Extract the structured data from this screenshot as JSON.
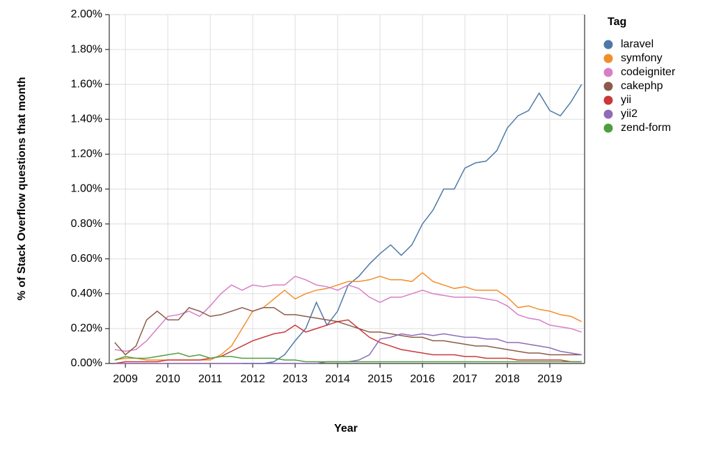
{
  "chart_data": {
    "type": "line",
    "x_label": "Year",
    "y_label": "% of Stack Overflow questions that month",
    "legend_title": "Tag",
    "legend": "right",
    "grid": true,
    "xlim": [
      2008.62,
      2019.82
    ],
    "xticks": [
      2009,
      2010,
      2011,
      2012,
      2013,
      2014,
      2015,
      2016,
      2017,
      2018,
      2019
    ],
    "ylim": [
      0,
      2
    ],
    "yticks": [
      {
        "value": 0,
        "label": "0.00%"
      },
      {
        "value": 0.2,
        "label": "0.20%"
      },
      {
        "value": 0.4,
        "label": "0.40%"
      },
      {
        "value": 0.6,
        "label": "0.60%"
      },
      {
        "value": 0.8,
        "label": "0.80%"
      },
      {
        "value": 1.0,
        "label": "1.00%"
      },
      {
        "value": 1.2,
        "label": "1.20%"
      },
      {
        "value": 1.4,
        "label": "1.40%"
      },
      {
        "value": 1.6,
        "label": "1.60%"
      },
      {
        "value": 1.8,
        "label": "1.80%"
      },
      {
        "value": 2.0,
        "label": "2.00%"
      }
    ],
    "x": [
      2008.75,
      2009,
      2009.25,
      2009.5,
      2009.75,
      2010,
      2010.25,
      2010.5,
      2010.75,
      2011,
      2011.25,
      2011.5,
      2011.75,
      2012,
      2012.25,
      2012.5,
      2012.75,
      2013,
      2013.25,
      2013.5,
      2013.75,
      2014,
      2014.25,
      2014.5,
      2014.75,
      2015,
      2015.25,
      2015.5,
      2015.75,
      2016,
      2016.25,
      2016.5,
      2016.75,
      2017,
      2017.25,
      2017.5,
      2017.75,
      2018,
      2018.25,
      2018.5,
      2018.75,
      2019,
      2019.25,
      2019.5,
      2019.75
    ],
    "series": [
      {
        "name": "laravel",
        "color": "#4e79a7",
        "values": [
          null,
          null,
          null,
          null,
          null,
          null,
          null,
          null,
          null,
          null,
          null,
          null,
          0,
          0,
          0,
          0.01,
          0.05,
          0.13,
          0.2,
          0.35,
          0.22,
          0.3,
          0.45,
          0.5,
          0.57,
          0.63,
          0.68,
          0.62,
          0.68,
          0.8,
          0.88,
          1.0,
          1.0,
          1.12,
          1.15,
          1.16,
          1.22,
          1.35,
          1.42,
          1.45,
          1.55,
          1.45,
          1.42,
          1.5,
          1.6
        ]
      },
      {
        "name": "symfony",
        "color": "#f28e2b",
        "values": [
          0.02,
          0.03,
          0.03,
          0.02,
          0.02,
          0.02,
          0.02,
          0.02,
          0.02,
          0.02,
          0.05,
          0.1,
          0.2,
          0.3,
          0.32,
          0.37,
          0.42,
          0.37,
          0.4,
          0.42,
          0.43,
          0.45,
          0.47,
          0.47,
          0.48,
          0.5,
          0.48,
          0.48,
          0.47,
          0.52,
          0.47,
          0.45,
          0.43,
          0.44,
          0.42,
          0.42,
          0.42,
          0.38,
          0.32,
          0.33,
          0.31,
          0.3,
          0.28,
          0.27,
          0.24
        ]
      },
      {
        "name": "codeigniter",
        "color": "#d77fc6",
        "values": [
          0.08,
          0.07,
          0.08,
          0.13,
          0.2,
          0.27,
          0.28,
          0.3,
          0.27,
          0.33,
          0.4,
          0.45,
          0.42,
          0.45,
          0.44,
          0.45,
          0.45,
          0.5,
          0.48,
          0.45,
          0.44,
          0.42,
          0.45,
          0.43,
          0.38,
          0.35,
          0.38,
          0.38,
          0.4,
          0.42,
          0.4,
          0.39,
          0.38,
          0.38,
          0.38,
          0.37,
          0.36,
          0.33,
          0.28,
          0.26,
          0.25,
          0.22,
          0.21,
          0.2,
          0.18
        ]
      },
      {
        "name": "cakephp",
        "color": "#8c5a4b",
        "values": [
          0.12,
          0.05,
          0.1,
          0.25,
          0.3,
          0.25,
          0.25,
          0.32,
          0.3,
          0.27,
          0.28,
          0.3,
          0.32,
          0.3,
          0.32,
          0.32,
          0.28,
          0.28,
          0.27,
          0.26,
          0.25,
          0.24,
          0.22,
          0.2,
          0.18,
          0.18,
          0.17,
          0.16,
          0.15,
          0.15,
          0.13,
          0.13,
          0.12,
          0.11,
          0.1,
          0.1,
          0.09,
          0.08,
          0.07,
          0.06,
          0.06,
          0.05,
          0.05,
          0.05,
          0.05
        ]
      },
      {
        "name": "yii",
        "color": "#c9383a",
        "values": [
          0,
          0.01,
          0.01,
          0.01,
          0.01,
          0.02,
          0.02,
          0.02,
          0.02,
          0.03,
          0.04,
          0.07,
          0.1,
          0.13,
          0.15,
          0.17,
          0.18,
          0.22,
          0.18,
          0.2,
          0.22,
          0.24,
          0.25,
          0.2,
          0.15,
          0.12,
          0.1,
          0.08,
          0.07,
          0.06,
          0.05,
          0.05,
          0.05,
          0.04,
          0.04,
          0.03,
          0.03,
          0.03,
          0.02,
          0.02,
          0.02,
          0.02,
          0.02,
          0.01,
          0.01
        ]
      },
      {
        "name": "yii2",
        "color": "#8f6bb8",
        "values": [
          0,
          0,
          0,
          0,
          0,
          0,
          0,
          0,
          0,
          0,
          0,
          0,
          0,
          0,
          0,
          0,
          0,
          0,
          0,
          0,
          0.01,
          0.01,
          0.01,
          0.02,
          0.05,
          0.14,
          0.15,
          0.17,
          0.16,
          0.17,
          0.16,
          0.17,
          0.16,
          0.15,
          0.15,
          0.14,
          0.14,
          0.12,
          0.12,
          0.11,
          0.1,
          0.09,
          0.07,
          0.06,
          0.05
        ]
      },
      {
        "name": "zend-form",
        "color": "#4f9e3f",
        "values": [
          0.02,
          0.04,
          0.03,
          0.03,
          0.04,
          0.05,
          0.06,
          0.04,
          0.05,
          0.03,
          0.04,
          0.04,
          0.03,
          0.03,
          0.03,
          0.03,
          0.02,
          0.02,
          0.01,
          0.01,
          0.01,
          0.01,
          0.01,
          0.01,
          0.01,
          0.01,
          0.01,
          0.01,
          0.01,
          0.01,
          0.01,
          0.01,
          0.01,
          0.01,
          0.01,
          0.01,
          0.01,
          0.01,
          0.01,
          0.01,
          0.01,
          0.01,
          0.01,
          0.01,
          0.01
        ]
      }
    ]
  }
}
